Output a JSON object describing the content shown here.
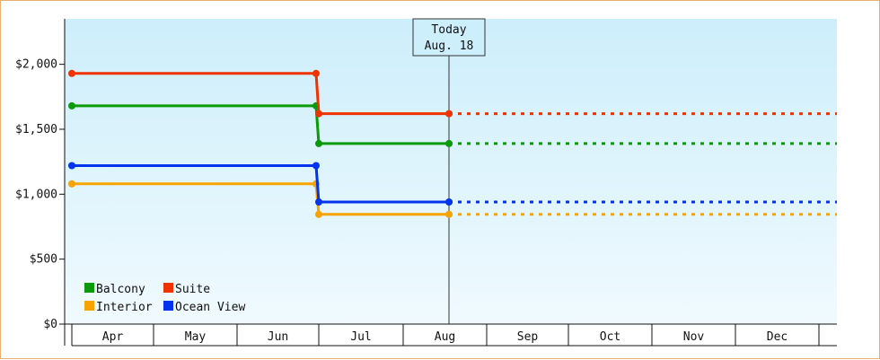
{
  "chart_data": {
    "type": "line",
    "step": true,
    "y_axis": {
      "ticks": [
        0,
        500,
        1000,
        1500,
        2000
      ],
      "tick_labels": [
        "$0",
        "$500",
        "$1,000",
        "$1,500",
        "$2,000"
      ],
      "ylim": [
        0,
        2350
      ]
    },
    "x_axis": {
      "categories": [
        "Apr",
        "May",
        "Jun",
        "Jul",
        "Aug",
        "Sep",
        "Oct",
        "Nov",
        "Dec"
      ]
    },
    "today_marker": {
      "line1": "Today",
      "line2": "Aug. 18",
      "date": "Aug 18"
    },
    "price_change_date": "Jun 30",
    "change_points": [
      "Apr 1",
      "Jun 30",
      "Jul 1",
      "Aug 18"
    ],
    "projection": "dotted after Today",
    "series": [
      {
        "name": "Balcony",
        "color": "#0a9a0a",
        "values": [
          1680,
          1680,
          1390,
          1390
        ]
      },
      {
        "name": "Suite",
        "color": "#ee3300",
        "values": [
          1930,
          1930,
          1620,
          1620
        ]
      },
      {
        "name": "Interior",
        "color": "#f7a400",
        "values": [
          1080,
          1080,
          845,
          845
        ]
      },
      {
        "name": "Ocean View",
        "color": "#0033ee",
        "values": [
          1220,
          1220,
          940,
          940
        ]
      }
    ],
    "legend_order": [
      "Balcony",
      "Suite",
      "Interior",
      "Ocean View"
    ],
    "legend_position": "bottom-left",
    "background_gradient": [
      "#cdeefb",
      "#f0fafe"
    ]
  }
}
